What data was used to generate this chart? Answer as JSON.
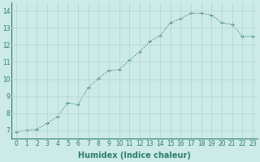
{
  "x": [
    0,
    1,
    2,
    3,
    4,
    5,
    6,
    7,
    8,
    9,
    10,
    11,
    12,
    13,
    14,
    15,
    16,
    17,
    18,
    19,
    20,
    21,
    22,
    23
  ],
  "y": [
    6.9,
    7.0,
    7.05,
    7.4,
    7.8,
    8.6,
    8.5,
    9.5,
    10.05,
    10.5,
    10.55,
    11.1,
    11.6,
    12.2,
    12.55,
    13.3,
    13.55,
    13.85,
    13.85,
    13.75,
    13.3,
    13.2,
    12.5,
    12.5
  ],
  "line_color": "#2e7d6e",
  "marker": "+",
  "bg_color": "#cceae7",
  "grid_color": "#aed4cf",
  "xlabel": "Humidex (Indice chaleur)",
  "xlim": [
    -0.5,
    23.5
  ],
  "ylim": [
    6.5,
    14.5
  ],
  "yticks": [
    7,
    8,
    9,
    10,
    11,
    12,
    13,
    14
  ],
  "xticks": [
    0,
    1,
    2,
    3,
    4,
    5,
    6,
    7,
    8,
    9,
    10,
    11,
    12,
    13,
    14,
    15,
    16,
    17,
    18,
    19,
    20,
    21,
    22,
    23
  ],
  "tick_label_fontsize": 5.5,
  "xlabel_fontsize": 7,
  "line_width": 0.8,
  "marker_size": 3,
  "marker_ew": 0.8
}
